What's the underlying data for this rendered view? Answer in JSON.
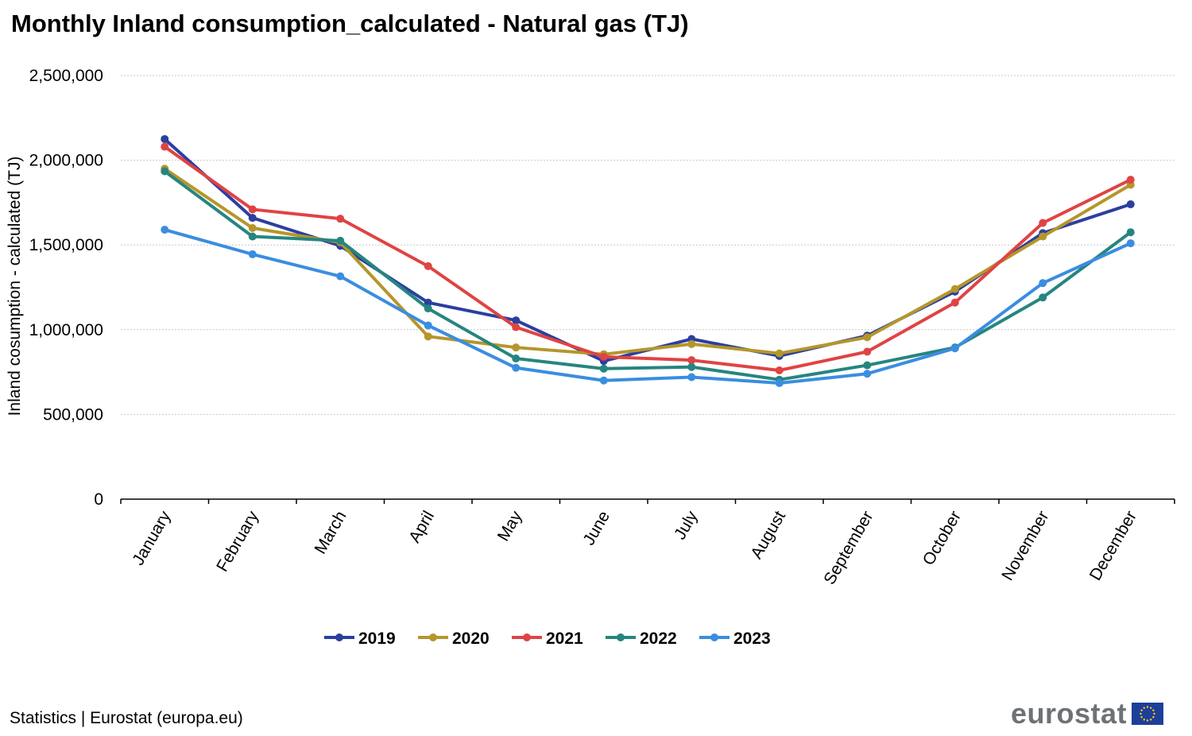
{
  "chart_data": {
    "type": "line",
    "title": "Monthly Inland consumption_calculated  - Natural gas (TJ)",
    "ylabel": "Inland cosumption - calculated  (TJ)",
    "xlabel": "",
    "ylim": [
      0,
      2500000
    ],
    "yticks": [
      0,
      500000,
      1000000,
      1500000,
      2000000,
      2500000
    ],
    "ytick_labels": [
      "0",
      "500,000",
      "1,000,000",
      "1,500,000",
      "2,000,000",
      "2,500,000"
    ],
    "grid": "horizontal",
    "legend_position": "bottom",
    "categories": [
      "January",
      "February",
      "March",
      "April",
      "May",
      "June",
      "July",
      "August",
      "September",
      "October",
      "November",
      "December"
    ],
    "series": [
      {
        "name": "2019",
        "color": "#2b3fa0",
        "values": [
          2125000,
          1660000,
          1495000,
          1160000,
          1055000,
          815000,
          945000,
          845000,
          965000,
          1225000,
          1570000,
          1740000
        ]
      },
      {
        "name": "2020",
        "color": "#b5962a",
        "values": [
          1950000,
          1600000,
          1515000,
          960000,
          895000,
          855000,
          915000,
          860000,
          955000,
          1240000,
          1550000,
          1855000
        ]
      },
      {
        "name": "2021",
        "color": "#e04343",
        "values": [
          2080000,
          1710000,
          1655000,
          1375000,
          1015000,
          840000,
          820000,
          760000,
          870000,
          1160000,
          1630000,
          1885000
        ]
      },
      {
        "name": "2022",
        "color": "#268580",
        "values": [
          1935000,
          1550000,
          1525000,
          1125000,
          830000,
          770000,
          780000,
          705000,
          790000,
          895000,
          1190000,
          1575000
        ]
      },
      {
        "name": "2023",
        "color": "#3a8de0",
        "values": [
          1590000,
          1445000,
          1315000,
          1025000,
          775000,
          700000,
          720000,
          685000,
          740000,
          890000,
          1275000,
          1510000
        ]
      }
    ]
  },
  "footer": {
    "source": "Statistics | Eurostat (europa.eu)",
    "logo_text": "eurostat"
  }
}
